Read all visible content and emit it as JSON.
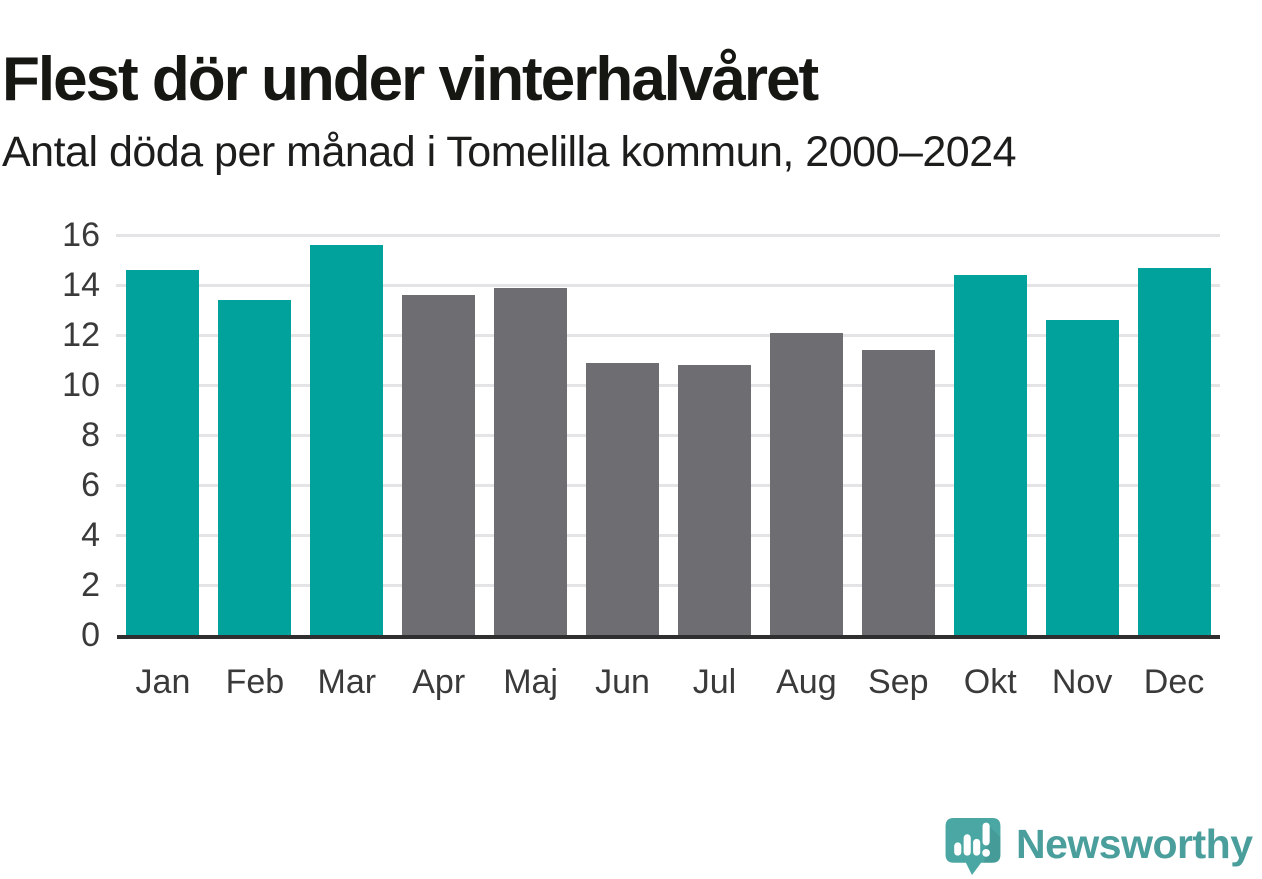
{
  "title": "Flest dör under vinterhalvåret",
  "subtitle": "Antal döda per månad i Tomelilla kommun, 2000–2024",
  "chart_data": {
    "type": "bar",
    "title": "Flest dör under vinterhalvåret",
    "subtitle": "Antal döda per månad i Tomelilla kommun, 2000–2024",
    "categories": [
      "Jan",
      "Feb",
      "Mar",
      "Apr",
      "Maj",
      "Jun",
      "Jul",
      "Aug",
      "Sep",
      "Okt",
      "Nov",
      "Dec"
    ],
    "values": [
      14.6,
      13.4,
      15.6,
      13.6,
      13.9,
      10.9,
      10.8,
      12.1,
      11.4,
      14.4,
      12.6,
      14.7
    ],
    "bar_seasons": [
      "winter",
      "winter",
      "winter",
      "summer",
      "summer",
      "summer",
      "summer",
      "summer",
      "summer",
      "winter",
      "winter",
      "winter"
    ],
    "palette": {
      "winter": "#00a29b",
      "summer": "#6e6e72"
    },
    "yticks": [
      0,
      2,
      4,
      6,
      8,
      10,
      12,
      14,
      16
    ],
    "ylim": [
      0,
      16
    ],
    "xlabel": "",
    "ylabel": "",
    "grid": "horizontal",
    "legend": "none"
  },
  "colors": {
    "bar_winter": "#00a29b",
    "bar_summer": "#6e6e72",
    "grid": "#e4e4e6",
    "axis": "#2f2f2f",
    "tick_text": "#3a3a3a",
    "title_text": "#161613",
    "logo_bubble": "#4ba7a3",
    "logo_text": "#4a9e9b"
  },
  "logo": {
    "text": "Newsworthy",
    "icon": "newsworthy-speech-bubble-bar-chart-icon"
  }
}
